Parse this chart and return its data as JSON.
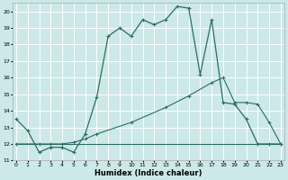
{
  "xlabel": "Humidex (Indice chaleur)",
  "bg_color": "#cce8e8",
  "grid_color": "#ffffff",
  "line_color": "#2a6e65",
  "xlim": [
    -0.5,
    23.5
  ],
  "ylim": [
    11,
    20.5
  ],
  "yticks": [
    11,
    12,
    13,
    14,
    15,
    16,
    17,
    18,
    19,
    20
  ],
  "xticks": [
    0,
    1,
    2,
    3,
    4,
    5,
    6,
    7,
    8,
    9,
    10,
    11,
    12,
    13,
    14,
    15,
    16,
    17,
    18,
    19,
    20,
    21,
    22,
    23
  ],
  "curve1_x": [
    0,
    1,
    2,
    3,
    4,
    5,
    6,
    7,
    8,
    9,
    10,
    11,
    12,
    13,
    14,
    15,
    16,
    17,
    18,
    19,
    20,
    21,
    22,
    23
  ],
  "curve1_y": [
    13.5,
    12.8,
    11.5,
    11.8,
    11.8,
    11.5,
    12.6,
    14.8,
    18.5,
    19.0,
    18.5,
    19.5,
    19.2,
    19.5,
    20.3,
    20.2,
    16.2,
    19.5,
    14.5,
    14.4,
    13.5,
    12.0,
    12.0,
    12.0
  ],
  "curve2_x": [
    0,
    2,
    3,
    4,
    5,
    6,
    7,
    10,
    13,
    15,
    17,
    18,
    19,
    20,
    21,
    22,
    23
  ],
  "curve2_y": [
    12.0,
    12.0,
    12.0,
    12.0,
    12.1,
    12.3,
    12.6,
    13.3,
    14.2,
    14.9,
    15.7,
    16.0,
    14.5,
    14.5,
    14.4,
    13.3,
    12.0
  ],
  "curve3_x": [
    0,
    5,
    10,
    15,
    20,
    21,
    22,
    23
  ],
  "curve3_y": [
    12.0,
    12.0,
    12.0,
    12.0,
    12.0,
    12.0,
    12.0,
    12.0
  ],
  "ylabel_fontsize": 5,
  "xlabel_fontsize": 6,
  "tick_fontsize": 4.5
}
